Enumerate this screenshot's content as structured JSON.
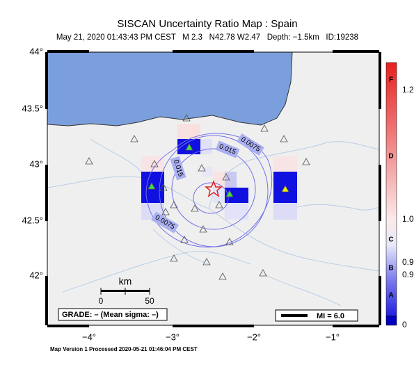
{
  "header": {
    "title": "SISCAN Uncertainty Ratio Map : Spain",
    "subtitle": "May 21, 2020 01:43:43 PM CEST   M 2.3   N42.78 W2.47   Depth: −1.5km   ID:19238"
  },
  "map": {
    "lat_labels": [
      "44°",
      "43.5°",
      "43°",
      "42.5°",
      "42°"
    ],
    "lon_labels": [
      "−4°",
      "−3°",
      "−2°",
      "−1°"
    ],
    "contour_labels": [
      "0.0075",
      "0.015",
      "0.015",
      "0.0075"
    ],
    "scale": {
      "unit": "km",
      "ticks": [
        "0",
        "50"
      ]
    },
    "grade": "GRADE: – (Mean sigma: –)",
    "mi": "MI = 6.0"
  },
  "colorbar": {
    "grades": [
      "F",
      "D",
      "C",
      "B",
      "A"
    ],
    "labels": [
      "1.2",
      "1.0",
      "0.9",
      "0.9",
      "0"
    ]
  },
  "footer": "Map Version 1 Processed 2020-05-21 01:46:04 PM CEST"
}
